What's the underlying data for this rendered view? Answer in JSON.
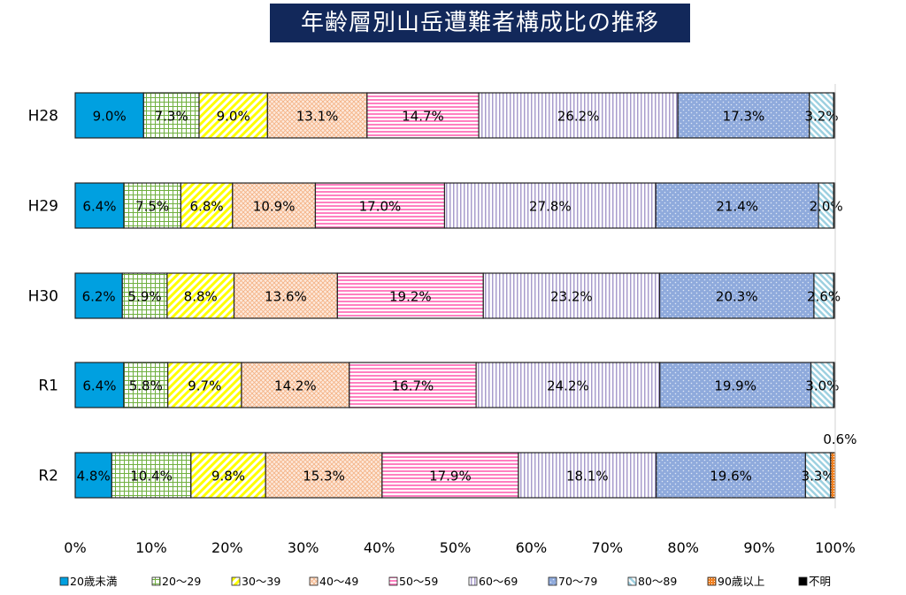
{
  "chart_data": {
    "type": "bar",
    "orientation": "horizontal",
    "stacked": "percent",
    "title": "年齢層別山岳遭難者構成比の推移",
    "categories": [
      "H28",
      "H29",
      "H30",
      "R1",
      "R2"
    ],
    "xlim": [
      0,
      100
    ],
    "xticks": [
      "0%",
      "10%",
      "20%",
      "30%",
      "40%",
      "50%",
      "60%",
      "70%",
      "80%",
      "90%",
      "100%"
    ],
    "legend_position": "bottom",
    "series": [
      {
        "name": "20歳未満",
        "color": "#00a0e0",
        "pattern": "solid",
        "values": [
          9.0,
          6.4,
          6.2,
          6.4,
          4.8
        ]
      },
      {
        "name": "20～29",
        "color": "#70b040",
        "pattern": "grid",
        "values": [
          7.3,
          7.5,
          5.9,
          5.8,
          10.4
        ]
      },
      {
        "name": "30～39",
        "color": "#ffff00",
        "pattern": "diag",
        "values": [
          9.0,
          6.8,
          8.8,
          9.7,
          9.8
        ]
      },
      {
        "name": "40～49",
        "color": "#f4b183",
        "pattern": "cross",
        "values": [
          13.1,
          10.9,
          13.6,
          14.2,
          15.3
        ]
      },
      {
        "name": "50～59",
        "color": "#ff80c0",
        "pattern": "hstripe",
        "values": [
          14.7,
          17.0,
          19.2,
          16.7,
          17.9
        ]
      },
      {
        "name": "60～69",
        "color": "#a89ccc",
        "pattern": "vstripe",
        "values": [
          26.2,
          27.8,
          23.2,
          24.2,
          18.1
        ]
      },
      {
        "name": "70～79",
        "color": "#8faadc",
        "pattern": "dots",
        "values": [
          17.3,
          21.4,
          20.3,
          19.9,
          19.6
        ]
      },
      {
        "name": "80～89",
        "color": "#9dd0e0",
        "pattern": "diag2",
        "values": [
          3.2,
          2.0,
          2.6,
          3.0,
          3.3
        ]
      },
      {
        "name": "90歳以上",
        "color": "#f08020",
        "pattern": "orange",
        "values": [
          0,
          0,
          0,
          0,
          0.6
        ]
      },
      {
        "name": "不明",
        "color": "#000000",
        "pattern": "solid",
        "values": [
          0.2,
          0.2,
          0.2,
          0.2,
          0
        ]
      }
    ],
    "data_labels": [
      [
        "9.0%",
        "7.3%",
        "9.0%",
        "13.1%",
        "14.7%",
        "26.2%",
        "17.3%",
        "3.2%",
        "",
        ""
      ],
      [
        "6.4%",
        "7.5%",
        "6.8%",
        "10.9%",
        "17.0%",
        "27.8%",
        "21.4%",
        "2.0%",
        "",
        ""
      ],
      [
        "6.2%",
        "5.9%",
        "8.8%",
        "13.6%",
        "19.2%",
        "23.2%",
        "20.3%",
        "2.6%",
        "",
        ""
      ],
      [
        "6.4%",
        "5.8%",
        "9.7%",
        "14.2%",
        "16.7%",
        "24.2%",
        "19.9%",
        "3.0%",
        "",
        ""
      ],
      [
        "4.8%",
        "10.4%",
        "9.8%",
        "15.3%",
        "17.9%",
        "18.1%",
        "19.6%",
        "3.3%",
        "0.6%",
        ""
      ]
    ]
  }
}
